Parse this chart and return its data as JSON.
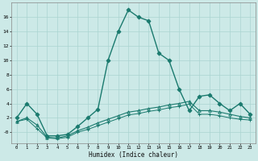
{
  "xlabel": "Humidex (Indice chaleur)",
  "bg_color": "#cce9e7",
  "grid_color": "#aad4d1",
  "line_color": "#1a7a6e",
  "ylim": [
    -1.5,
    18
  ],
  "xlim": [
    -0.5,
    23.5
  ],
  "yticks": [
    0,
    2,
    4,
    6,
    8,
    10,
    12,
    14,
    16
  ],
  "ytick_labels": [
    "-0",
    "2",
    "4",
    "6",
    "8",
    "10",
    "12",
    "14",
    "16"
  ],
  "xticks": [
    0,
    1,
    2,
    3,
    4,
    5,
    6,
    7,
    8,
    9,
    10,
    11,
    12,
    13,
    14,
    15,
    16,
    17,
    18,
    19,
    20,
    21,
    22,
    23
  ],
  "series": [
    {
      "x": [
        0,
        1,
        2,
        3,
        4,
        5,
        6,
        7,
        8,
        9,
        10,
        11,
        12,
        13,
        14,
        15,
        16,
        17,
        18,
        19,
        20,
        21,
        22,
        23
      ],
      "y": [
        2.0,
        4.0,
        2.5,
        -0.5,
        -0.5,
        -0.3,
        0.8,
        2.0,
        3.2,
        10.0,
        14.0,
        17.0,
        16.0,
        15.5,
        11.0,
        10.0,
        6.0,
        3.0,
        5.0,
        5.2,
        4.0,
        3.0,
        4.0,
        2.5
      ],
      "marker": "D",
      "markersize": 2.5,
      "linewidth": 1.0,
      "fillmarker": true
    },
    {
      "x": [
        0,
        1,
        2,
        3,
        4,
        5,
        6,
        7,
        8,
        9,
        10,
        11,
        12,
        13,
        14,
        15,
        16,
        17,
        18,
        19,
        20,
        21,
        22,
        23
      ],
      "y": [
        1.5,
        2.0,
        1.0,
        -0.7,
        -0.8,
        -0.5,
        0.2,
        0.7,
        1.3,
        1.8,
        2.3,
        2.8,
        3.0,
        3.3,
        3.5,
        3.8,
        4.0,
        4.3,
        3.0,
        3.0,
        2.8,
        2.5,
        2.2,
        2.0
      ],
      "marker": "^",
      "markersize": 2.5,
      "linewidth": 0.8,
      "fillmarker": false
    },
    {
      "x": [
        0,
        1,
        2,
        3,
        4,
        5,
        6,
        7,
        8,
        9,
        10,
        11,
        12,
        13,
        14,
        15,
        16,
        17,
        18,
        19,
        20,
        21,
        22,
        23
      ],
      "y": [
        1.5,
        1.8,
        0.5,
        -0.8,
        -0.9,
        -0.7,
        0.0,
        0.4,
        0.9,
        1.4,
        1.9,
        2.4,
        2.6,
        2.9,
        3.1,
        3.4,
        3.6,
        3.9,
        2.5,
        2.5,
        2.3,
        2.0,
        1.8,
        1.7
      ],
      "marker": "+",
      "markersize": 3.5,
      "linewidth": 0.7,
      "fillmarker": false
    }
  ]
}
